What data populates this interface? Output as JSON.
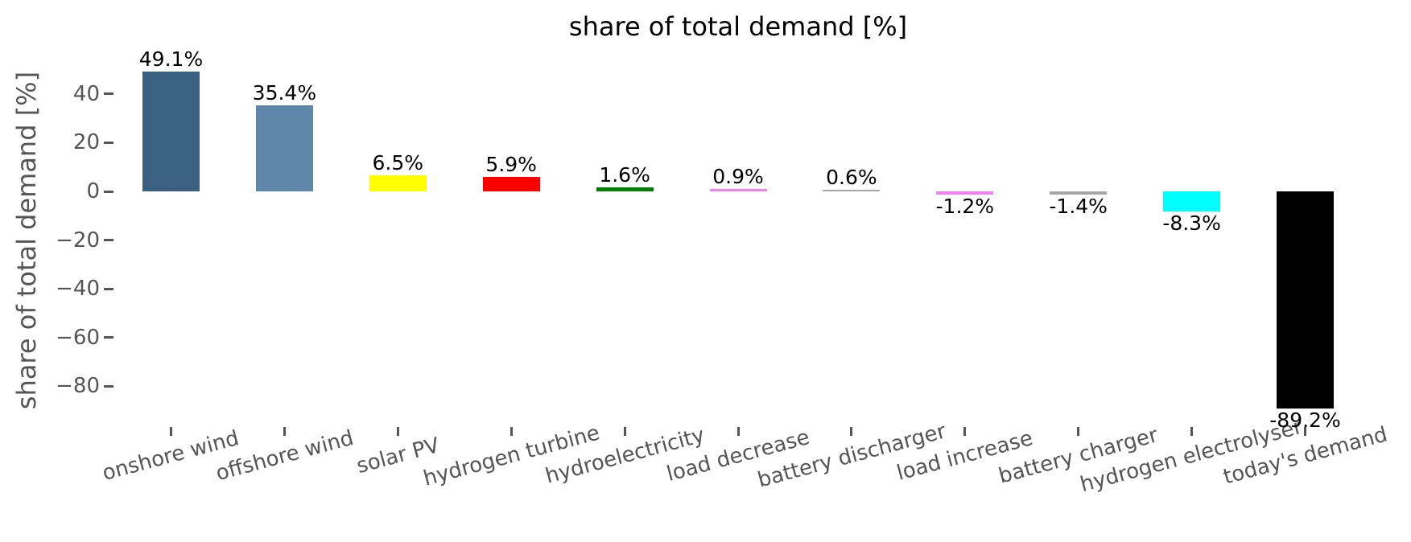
{
  "chart_data": {
    "type": "bar",
    "title": "share of total demand [%]",
    "xlabel": "",
    "ylabel": "share of total demand [%]",
    "unit": "%",
    "categories": [
      "onshore wind",
      "offshore wind",
      "solar PV",
      "hydrogen turbine",
      "hydroelectricity",
      "load decrease",
      "battery discharger",
      "load increase",
      "battery charger",
      "hydrogen electrolyser",
      "today's demand"
    ],
    "values": [
      49.1,
      35.4,
      6.5,
      5.9,
      1.6,
      0.9,
      0.6,
      -1.2,
      -1.4,
      -8.3,
      -89.2
    ],
    "value_labels": [
      "49.1%",
      "35.4%",
      "6.5%",
      "5.9%",
      "1.6%",
      "0.9%",
      "0.6%",
      "-1.2%",
      "-1.4%",
      "-8.3%",
      "-89.2%"
    ],
    "bar_colors": [
      "#3B6182",
      "#5E87A9",
      "#FFFF00",
      "#FF0000",
      "#008000",
      "#EE82EE",
      "#A6A6A6",
      "#EE82EE",
      "#A6A6A6",
      "#00FFFF",
      "#000000"
    ],
    "yticks": [
      40,
      20,
      0,
      -20,
      -40,
      -60,
      -80
    ],
    "ylim": [
      -97,
      55
    ],
    "grid": false,
    "legend": null,
    "spines": false,
    "x_label_rotation_deg": 15,
    "axis_text_color": "#555555",
    "title_color": "#000000",
    "value_label_color": "#000000"
  }
}
